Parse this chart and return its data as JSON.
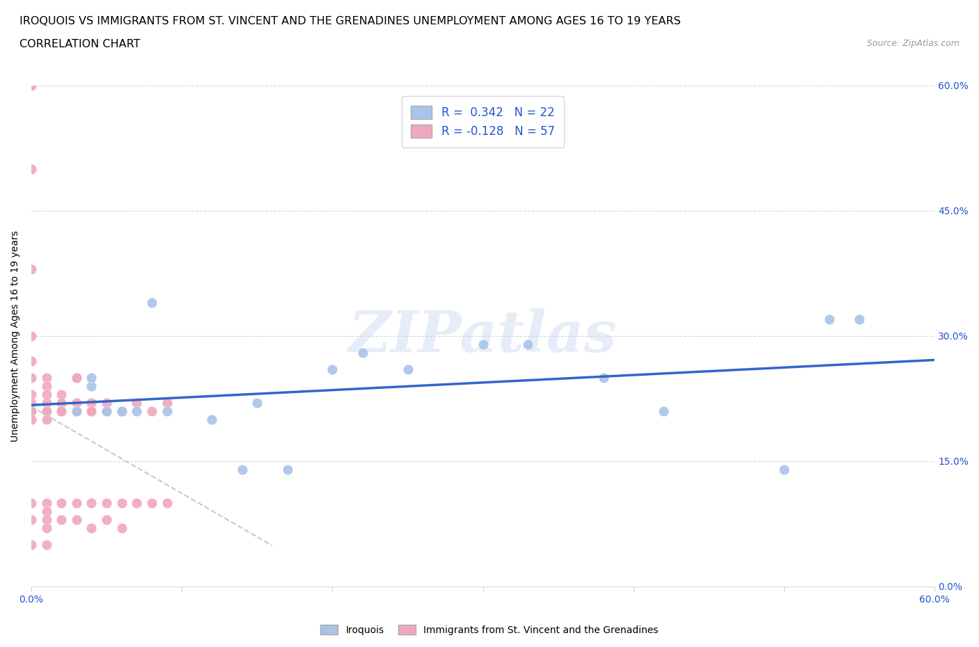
{
  "title_line1": "IROQUOIS VS IMMIGRANTS FROM ST. VINCENT AND THE GRENADINES UNEMPLOYMENT AMONG AGES 16 TO 19 YEARS",
  "title_line2": "CORRELATION CHART",
  "source": "Source: ZipAtlas.com",
  "ylabel": "Unemployment Among Ages 16 to 19 years",
  "watermark": "ZIPatlas",
  "blue_R": 0.342,
  "blue_N": 22,
  "pink_R": -0.128,
  "pink_N": 57,
  "blue_color": "#A8C4E8",
  "pink_color": "#F0A8BC",
  "blue_line_color": "#3366CC",
  "pink_line_color": "#C8C8C8",
  "legend_label_blue": "Iroquois",
  "legend_label_pink": "Immigrants from St. Vincent and the Grenadines",
  "title_fontsize": 11.5,
  "axis_label_fontsize": 10,
  "tick_fontsize": 10,
  "legend_fontsize": 12,
  "blue_x": [
    0.03,
    0.04,
    0.04,
    0.05,
    0.06,
    0.07,
    0.08,
    0.09,
    0.12,
    0.14,
    0.15,
    0.17,
    0.2,
    0.22,
    0.25,
    0.3,
    0.33,
    0.38,
    0.42,
    0.5,
    0.53,
    0.55
  ],
  "blue_y": [
    0.21,
    0.24,
    0.25,
    0.21,
    0.21,
    0.21,
    0.34,
    0.21,
    0.2,
    0.14,
    0.22,
    0.14,
    0.26,
    0.28,
    0.26,
    0.29,
    0.29,
    0.25,
    0.21,
    0.14,
    0.32,
    0.32
  ],
  "pink_x": [
    0.0,
    0.0,
    0.0,
    0.0,
    0.0,
    0.0,
    0.0,
    0.0,
    0.0,
    0.0,
    0.0,
    0.0,
    0.0,
    0.0,
    0.01,
    0.01,
    0.01,
    0.01,
    0.01,
    0.01,
    0.01,
    0.01,
    0.01,
    0.01,
    0.01,
    0.01,
    0.02,
    0.02,
    0.02,
    0.02,
    0.02,
    0.02,
    0.03,
    0.03,
    0.03,
    0.03,
    0.03,
    0.03,
    0.04,
    0.04,
    0.04,
    0.04,
    0.04,
    0.05,
    0.05,
    0.05,
    0.05,
    0.06,
    0.06,
    0.06,
    0.06,
    0.07,
    0.07,
    0.08,
    0.08,
    0.09,
    0.09
  ],
  "pink_y": [
    0.6,
    0.5,
    0.38,
    0.3,
    0.27,
    0.25,
    0.23,
    0.22,
    0.21,
    0.21,
    0.2,
    0.1,
    0.08,
    0.05,
    0.25,
    0.24,
    0.23,
    0.22,
    0.21,
    0.21,
    0.2,
    0.1,
    0.09,
    0.08,
    0.07,
    0.05,
    0.23,
    0.22,
    0.21,
    0.21,
    0.1,
    0.08,
    0.25,
    0.25,
    0.22,
    0.21,
    0.1,
    0.08,
    0.22,
    0.21,
    0.21,
    0.1,
    0.07,
    0.22,
    0.21,
    0.1,
    0.08,
    0.21,
    0.21,
    0.1,
    0.07,
    0.22,
    0.1,
    0.21,
    0.1,
    0.22,
    0.1
  ]
}
